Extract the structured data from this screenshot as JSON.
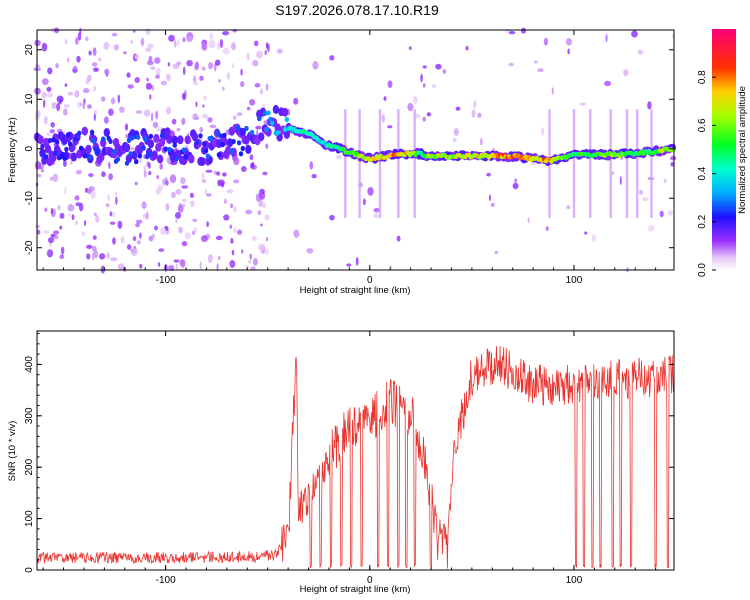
{
  "title": "S197.2026.078.17.10.R19",
  "colors": {
    "snr_line": "#e8342f",
    "axis": "#000000"
  },
  "chart_data": [
    {
      "type": "heatmap",
      "name": "spectrogram",
      "xlabel": "Height of straight line (km)",
      "ylabel": "Frequency (Hz)",
      "xlim": [
        -163,
        149
      ],
      "ylim": [
        -24.5,
        24
      ],
      "xticks": [
        -100,
        0,
        100
      ],
      "yticks": [
        -20,
        -10,
        0,
        10,
        20
      ],
      "grid": false,
      "colorbar": {
        "label": "Normalized spectral amplitude",
        "range": [
          0,
          1
        ],
        "ticks": [
          0.0,
          0.2,
          0.4,
          0.6,
          0.8
        ],
        "tick_labels": [
          "0.0",
          "0.2",
          "0.4",
          "0.6",
          "0.8"
        ]
      },
      "ridge": {
        "description": "dominant frequency ridge vs height",
        "x": [
          -163,
          -140,
          -120,
          -100,
          -80,
          -60,
          -52,
          -45,
          -38,
          -30,
          -22,
          -15,
          -8,
          0,
          8,
          15,
          20,
          25,
          28,
          40,
          60,
          70,
          80,
          88,
          95,
          100,
          110,
          120,
          130,
          140,
          148
        ],
        "y": [
          0,
          1,
          0,
          1,
          0,
          2,
          6,
          5,
          4,
          3,
          1,
          0,
          -1,
          -2,
          -1.5,
          -1,
          -1,
          -1,
          -1.5,
          -1.5,
          -1.5,
          -1.5,
          -2,
          -2.5,
          -1.8,
          -1.2,
          -1.2,
          -1.2,
          -1,
          -0.5,
          0
        ],
        "amplitude": [
          0.2,
          0.25,
          0.25,
          0.25,
          0.25,
          0.25,
          0.3,
          0.35,
          0.4,
          0.45,
          0.4,
          0.5,
          0.6,
          0.7,
          0.75,
          0.8,
          0.7,
          0.45,
          0.6,
          0.65,
          0.72,
          0.85,
          0.7,
          0.8,
          0.55,
          0.5,
          0.55,
          0.6,
          0.5,
          0.55,
          0.7
        ]
      }
    },
    {
      "type": "line",
      "name": "snr",
      "xlabel": "Height of straight line (km)",
      "ylabel": "SNR (10 * v/v)",
      "xlim": [
        -163,
        149
      ],
      "ylim": [
        0,
        465
      ],
      "xticks": [
        -100,
        0,
        100
      ],
      "yticks": [
        0,
        100,
        200,
        300,
        400
      ],
      "grid": false,
      "series": [
        {
          "name": "SNR",
          "envelope": {
            "x": [
              -163,
              -100,
              -60,
              -46,
              -40,
              -37,
              -36,
              -35,
              -30,
              -20,
              -10,
              0,
              10,
              20,
              25,
              30,
              33,
              38,
              40,
              45,
              50,
              60,
              70,
              80,
              100,
              120,
              149
            ],
            "y": [
              18,
              18,
              20,
              22,
              60,
              330,
              420,
              120,
              150,
              220,
              280,
              290,
              330,
              300,
              250,
              140,
              60,
              40,
              200,
              300,
              380,
              400,
              390,
              360,
              360,
              370,
              380
            ]
          },
          "dropouts": [
            -29,
            -24,
            -19,
            -14,
            -9,
            -4,
            4,
            9,
            14,
            18,
            22,
            30,
            101,
            105,
            109,
            113,
            119,
            123,
            128,
            140,
            146
          ]
        }
      ]
    }
  ]
}
